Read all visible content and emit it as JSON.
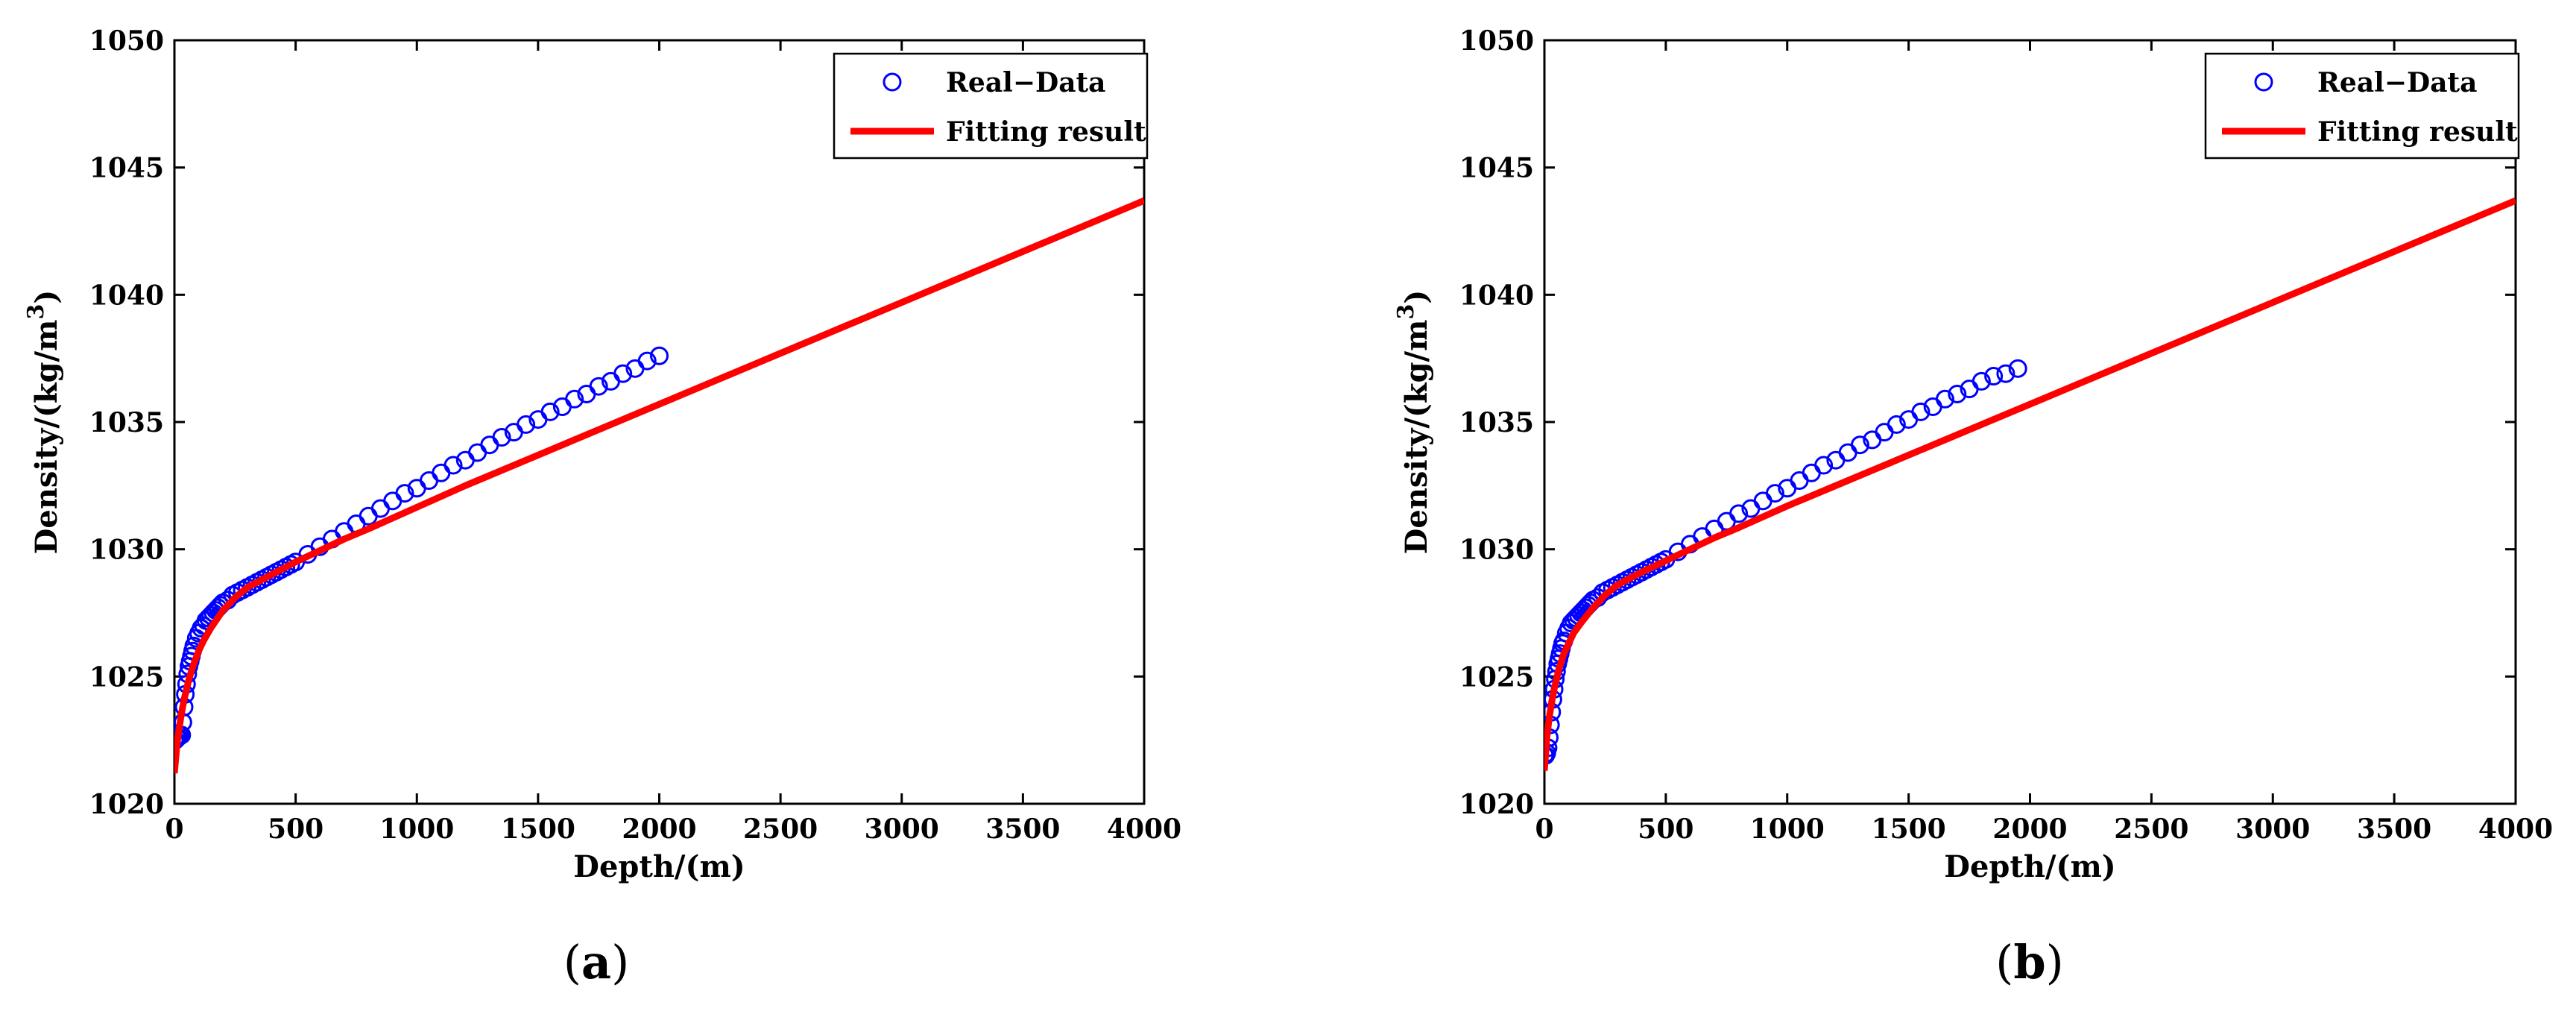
{
  "chart_data": [
    {
      "type": "line",
      "caption": "(a)",
      "caption_letter": "a",
      "xlabel": "Depth/(m)",
      "ylabel": "Density/(kg/m",
      "ylabel_sup": "3",
      "ylabel_end": ")",
      "xlim": [
        0,
        4000
      ],
      "ylim": [
        1020,
        1050
      ],
      "xticks": [
        0,
        500,
        1000,
        1500,
        2000,
        2500,
        3000,
        3500,
        4000
      ],
      "yticks": [
        1020,
        1025,
        1030,
        1035,
        1040,
        1045,
        1050
      ],
      "legend": {
        "position": "top-right",
        "entries": [
          "Real−Data",
          "Fitting result"
        ]
      },
      "colors": {
        "real": "#0000ff",
        "fit": "#ff0000"
      },
      "series": [
        {
          "name": "Real−Data",
          "marker": "circle",
          "x": [
            0,
            5,
            10,
            15,
            20,
            25,
            30,
            35,
            40,
            45,
            50,
            55,
            60,
            65,
            70,
            75,
            80,
            90,
            100,
            110,
            120,
            130,
            140,
            150,
            160,
            170,
            180,
            190,
            200,
            220,
            240,
            260,
            280,
            300,
            320,
            340,
            360,
            380,
            400,
            420,
            440,
            460,
            480,
            500,
            550,
            600,
            650,
            700,
            750,
            800,
            850,
            900,
            950,
            1000,
            1050,
            1100,
            1150,
            1200,
            1250,
            1300,
            1350,
            1400,
            1450,
            1500,
            1550,
            1600,
            1650,
            1700,
            1750,
            1800,
            1850,
            1900,
            1950,
            2000
          ],
          "y": [
            1022.5,
            1022.5,
            1022.6,
            1022.6,
            1022.7,
            1022.7,
            1022.7,
            1023.2,
            1023.8,
            1024.3,
            1024.7,
            1025.1,
            1025.4,
            1025.6,
            1025.8,
            1026.0,
            1026.2,
            1026.5,
            1026.7,
            1026.9,
            1027.0,
            1027.2,
            1027.3,
            1027.4,
            1027.5,
            1027.6,
            1027.7,
            1027.8,
            1027.9,
            1028.0,
            1028.2,
            1028.3,
            1028.4,
            1028.5,
            1028.6,
            1028.7,
            1028.8,
            1028.9,
            1029.0,
            1029.1,
            1029.2,
            1029.3,
            1029.4,
            1029.5,
            1029.8,
            1030.1,
            1030.4,
            1030.7,
            1031.0,
            1031.3,
            1031.6,
            1031.9,
            1032.2,
            1032.4,
            1032.7,
            1033.0,
            1033.3,
            1033.5,
            1033.8,
            1034.1,
            1034.4,
            1034.6,
            1034.9,
            1035.1,
            1035.4,
            1035.6,
            1035.9,
            1036.1,
            1036.4,
            1036.6,
            1036.9,
            1037.1,
            1037.4,
            1037.6
          ]
        },
        {
          "name": "Fitting result",
          "x": [
            0,
            10,
            20,
            30,
            40,
            50,
            60,
            80,
            100,
            120,
            150,
            200,
            250,
            300,
            400,
            500,
            600,
            700,
            800,
            1000,
            1200,
            1500,
            2000,
            2500,
            3000,
            3500,
            4000
          ],
          "y": [
            1021.2,
            1022.3,
            1023.0,
            1023.6,
            1024.1,
            1024.5,
            1024.9,
            1025.5,
            1026.0,
            1026.4,
            1026.9,
            1027.6,
            1028.1,
            1028.5,
            1029.0,
            1029.5,
            1029.95,
            1030.4,
            1030.8,
            1031.65,
            1032.5,
            1033.7,
            1035.7,
            1037.7,
            1039.7,
            1041.7,
            1043.7
          ]
        }
      ]
    },
    {
      "type": "line",
      "caption": "(b)",
      "caption_letter": "b",
      "xlabel": "Depth/(m)",
      "ylabel": "Density/(kg/m",
      "ylabel_sup": "3",
      "ylabel_end": ")",
      "xlim": [
        0,
        4000
      ],
      "ylim": [
        1020,
        1050
      ],
      "xticks": [
        0,
        500,
        1000,
        1500,
        2000,
        2500,
        3000,
        3500,
        4000
      ],
      "yticks": [
        1020,
        1025,
        1030,
        1035,
        1040,
        1045,
        1050
      ],
      "legend": {
        "position": "top-right",
        "entries": [
          "Real−Data",
          "Fitting result"
        ]
      },
      "colors": {
        "real": "#0000ff",
        "fit": "#ff0000"
      },
      "series": [
        {
          "name": "Real−Data",
          "marker": "circle",
          "x": [
            0,
            5,
            10,
            15,
            20,
            25,
            30,
            35,
            40,
            45,
            50,
            55,
            60,
            65,
            70,
            75,
            80,
            90,
            100,
            110,
            120,
            130,
            140,
            150,
            160,
            170,
            180,
            190,
            200,
            220,
            240,
            260,
            280,
            300,
            320,
            340,
            360,
            380,
            400,
            420,
            440,
            460,
            480,
            500,
            550,
            600,
            650,
            700,
            750,
            800,
            850,
            900,
            950,
            1000,
            1050,
            1100,
            1150,
            1200,
            1250,
            1300,
            1350,
            1400,
            1450,
            1500,
            1550,
            1600,
            1650,
            1700,
            1750,
            1800,
            1850,
            1900,
            1950
          ],
          "y": [
            1021.9,
            1021.9,
            1022.0,
            1022.2,
            1022.6,
            1023.1,
            1023.6,
            1024.1,
            1024.5,
            1024.9,
            1025.2,
            1025.5,
            1025.7,
            1025.9,
            1026.1,
            1026.3,
            1026.4,
            1026.7,
            1026.9,
            1027.1,
            1027.2,
            1027.3,
            1027.4,
            1027.5,
            1027.6,
            1027.7,
            1027.8,
            1027.9,
            1028.0,
            1028.1,
            1028.3,
            1028.4,
            1028.5,
            1028.6,
            1028.7,
            1028.8,
            1028.9,
            1029.0,
            1029.1,
            1029.2,
            1029.3,
            1029.4,
            1029.5,
            1029.6,
            1029.9,
            1030.2,
            1030.5,
            1030.8,
            1031.1,
            1031.4,
            1031.6,
            1031.9,
            1032.2,
            1032.4,
            1032.7,
            1033.0,
            1033.3,
            1033.5,
            1033.8,
            1034.1,
            1034.3,
            1034.6,
            1034.9,
            1035.1,
            1035.4,
            1035.6,
            1035.9,
            1036.1,
            1036.3,
            1036.6,
            1036.8,
            1036.9,
            1037.1
          ]
        },
        {
          "name": "Fitting result",
          "x": [
            0,
            10,
            20,
            30,
            40,
            50,
            60,
            80,
            100,
            120,
            150,
            200,
            250,
            300,
            400,
            500,
            600,
            700,
            800,
            1000,
            1200,
            1500,
            2000,
            2500,
            3000,
            3500,
            4000
          ],
          "y": [
            1021.3,
            1022.6,
            1023.4,
            1024.0,
            1024.5,
            1024.9,
            1025.3,
            1025.9,
            1026.3,
            1026.7,
            1027.1,
            1027.7,
            1028.2,
            1028.6,
            1029.1,
            1029.55,
            1030.0,
            1030.45,
            1030.85,
            1031.7,
            1032.5,
            1033.7,
            1035.7,
            1037.7,
            1039.7,
            1041.7,
            1043.7
          ]
        }
      ]
    }
  ]
}
